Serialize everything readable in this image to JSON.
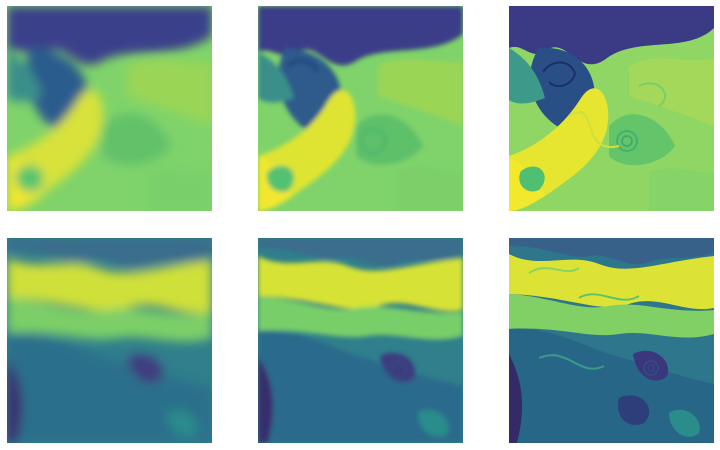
{
  "figure": {
    "rows": 2,
    "cols": 3,
    "colormap": [
      "#440154",
      "#3b528b",
      "#21908d",
      "#5dc963",
      "#fde725"
    ],
    "background": "#ffffff",
    "panels": [
      {
        "row": 1,
        "col": 1,
        "resolution": "low",
        "pattern": "scene-a"
      },
      {
        "row": 1,
        "col": 2,
        "resolution": "medium",
        "pattern": "scene-a"
      },
      {
        "row": 1,
        "col": 3,
        "resolution": "high",
        "pattern": "scene-a"
      },
      {
        "row": 2,
        "col": 1,
        "resolution": "low",
        "pattern": "scene-b"
      },
      {
        "row": 2,
        "col": 2,
        "resolution": "medium",
        "pattern": "scene-b"
      },
      {
        "row": 2,
        "col": 3,
        "resolution": "high",
        "pattern": "scene-b"
      }
    ]
  }
}
